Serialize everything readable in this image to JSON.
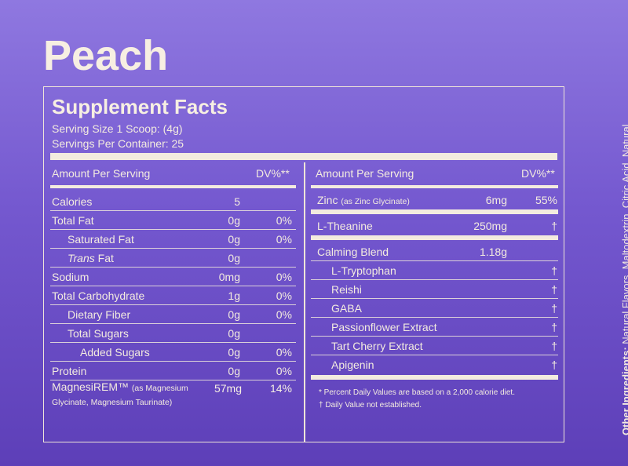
{
  "flavor": "Peach",
  "facts": {
    "title": "Supplement Facts",
    "serving_size": "Serving Size 1 Scoop: (4g)",
    "servings_per_container": "Servings Per Container: 25",
    "amount_per_serving": "Amount Per Serving",
    "dv_header": "DV%**"
  },
  "left_rows": [
    {
      "name": "Calories",
      "amount": "5",
      "dv": ""
    },
    {
      "name": "Total Fat",
      "amount": "0g",
      "dv": "0%"
    },
    {
      "name": "Saturated Fat",
      "amount": "0g",
      "dv": "0%"
    },
    {
      "name_italic": "Trans",
      "name_rest": " Fat",
      "amount": "0g",
      "dv": ""
    },
    {
      "name": "Sodium",
      "amount": "0mg",
      "dv": "0%"
    },
    {
      "name": "Total Carbohydrate",
      "amount": "1g",
      "dv": "0%"
    },
    {
      "name": "Dietary Fiber",
      "amount": "0g",
      "dv": "0%"
    },
    {
      "name": "Total Sugars",
      "amount": "0g",
      "dv": ""
    },
    {
      "name": "Added Sugars",
      "amount": "0g",
      "dv": "0%"
    },
    {
      "name": "Protein",
      "amount": "0g",
      "dv": "0%"
    }
  ],
  "magnesium": {
    "name": "MagnesiREM™",
    "detail": "(as Magnesium Glycinate, Magnesium Taurinate)",
    "amount": "57mg",
    "dv": "14%"
  },
  "right_rows": {
    "zinc": {
      "name": "Zinc",
      "detail": "(as Zinc Glycinate)",
      "amount": "6mg",
      "dv": "55%"
    },
    "theanine": {
      "name": "L-Theanine",
      "amount": "250mg",
      "dv": "†"
    },
    "blend": {
      "name": "Calming Blend",
      "amount": "1.18g"
    },
    "blend_items": [
      {
        "name": "L-Tryptophan",
        "dv": "†"
      },
      {
        "name": "Reishi",
        "dv": "†"
      },
      {
        "name": "GABA",
        "dv": "†"
      },
      {
        "name": "Passionflower Extract",
        "dv": "†"
      },
      {
        "name": "Tart Cherry Extract",
        "dv": "†"
      },
      {
        "name": "Apigenin",
        "dv": "†"
      }
    ]
  },
  "footnotes": {
    "star": "*  Percent Daily Values are based on a 2,000 calorie diet.",
    "dagger": "†  Daily Value not established."
  },
  "other_ingredients": {
    "label": "Other Ingredients:",
    "text": " Natural Flavors, Maltodextrin, Citric Acid, Natural Colors, Monk Fruit Extract."
  },
  "colors": {
    "background_top": "#8f78e0",
    "background_bottom": "#5d3fb8",
    "text": "#f3ebdf"
  }
}
